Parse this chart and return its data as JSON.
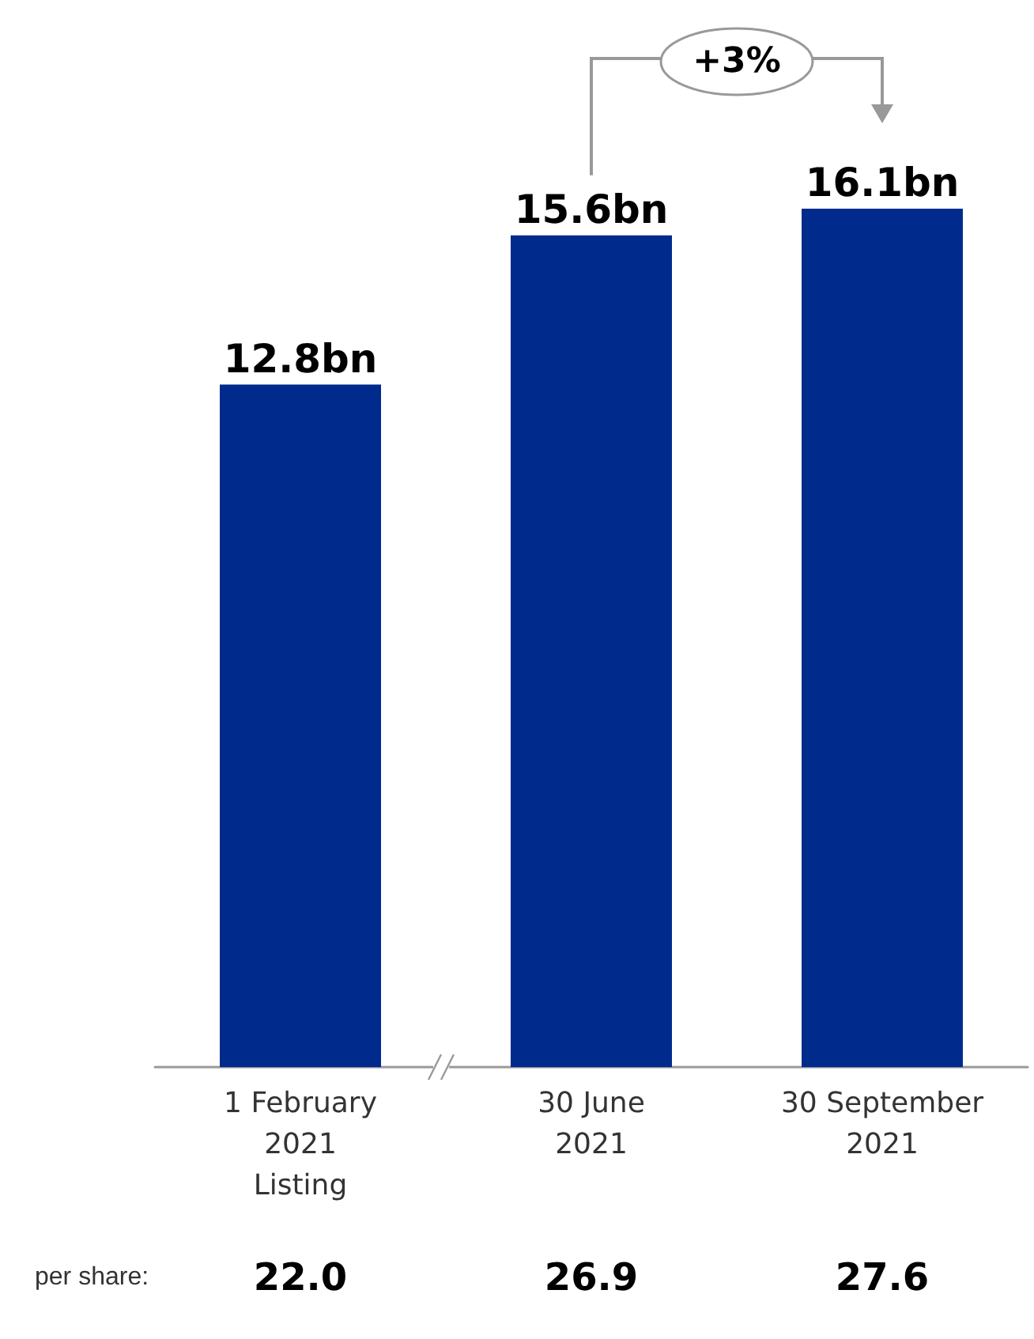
{
  "chart_data": {
    "type": "bar",
    "categories": [
      "1 February\n2021\nListing",
      "30 June\n2021",
      "30 September\n2021"
    ],
    "values": [
      12.8,
      15.6,
      16.1
    ],
    "color": "#002b8c",
    "value_labels": [
      "12.8bn",
      "15.6bn",
      "16.1bn"
    ],
    "annotations": [
      "per share:",
      "22.0",
      "26.9",
      "27.6",
      "+3%"
    ]
  }
}
